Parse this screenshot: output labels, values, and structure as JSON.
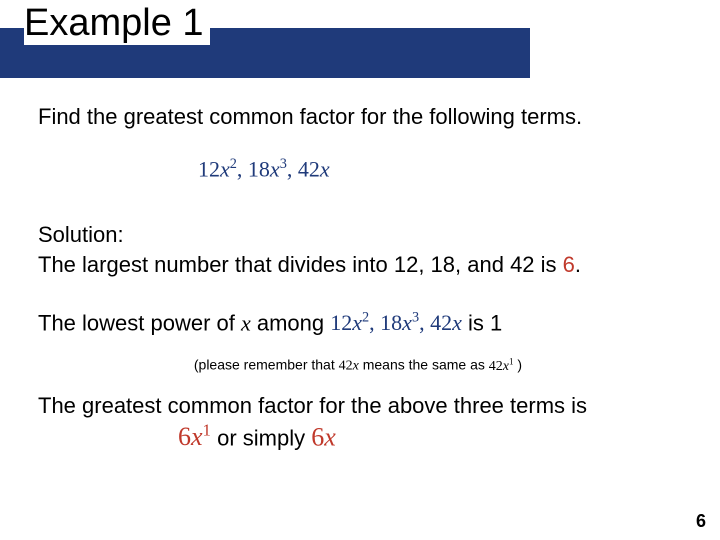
{
  "title": "Example 1",
  "prompt": "Find the greatest common factor for the following terms.",
  "terms": {
    "t1_coef": "12",
    "t1_var": "x",
    "t1_exp": "2",
    "t2_coef": "18",
    "t2_var": "x",
    "t2_exp": "3",
    "t3_coef": "42",
    "t3_var": "x"
  },
  "solution_label": "Solution:",
  "solution_line1a": "The largest number that divides into 12, 18, and 42 is ",
  "solution_number": "6",
  "solution_line1b": ".",
  "lowest_a": "The lowest power of ",
  "lowest_var": "x",
  "lowest_b": " among ",
  "lowest_c": "  is 1",
  "note_a": "(please remember that  ",
  "note_term_coef": "42",
  "note_term_var": "x",
  "note_b": " means the same as ",
  "note_term2_coef": "42",
  "note_term2_var": "x",
  "note_term2_exp": "1",
  "note_c": " )",
  "final_a": "The greatest common factor for the above three terms is",
  "answer1_num": "6",
  "answer1_var": "x",
  "answer1_exp": "1",
  "or_text": "   or simply   ",
  "answer2_num": "6",
  "answer2_var": "x",
  "page_number": "6",
  "colors": {
    "bar": "#1f3a7a",
    "red": "#c0392b",
    "text": "#000000",
    "bg": "#ffffff"
  }
}
